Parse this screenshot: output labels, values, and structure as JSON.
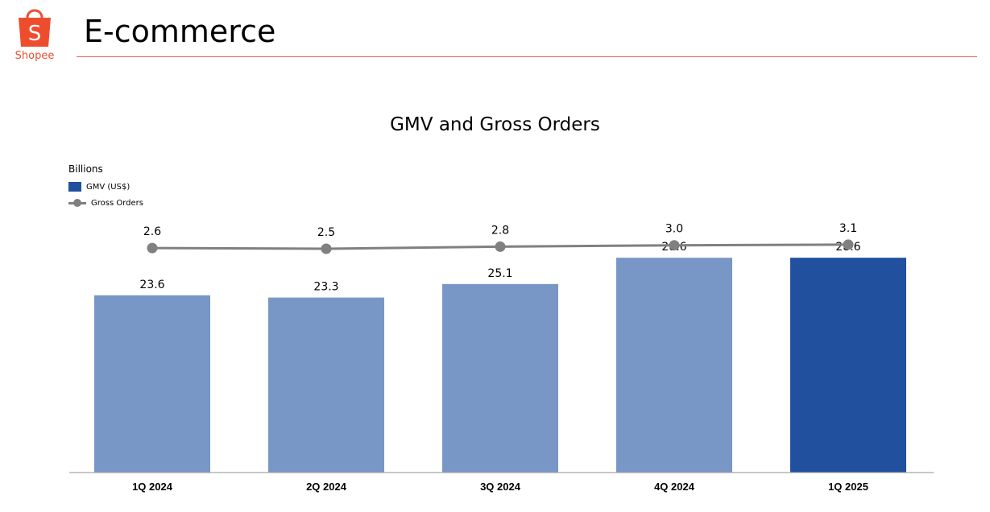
{
  "logo": {
    "text": "Shopee",
    "glyph": "S"
  },
  "header": {
    "title": "E-commerce"
  },
  "colors": {
    "brand": "#ee4d2d",
    "rule": "#e8645a",
    "bar_light": "#7896c6",
    "bar_dark": "#20509e",
    "line": "#808080"
  },
  "chart_data": {
    "type": "bar",
    "title": "GMV and Gross Orders",
    "units": "Billions",
    "categories": [
      "1Q 2024",
      "2Q 2024",
      "3Q 2024",
      "4Q 2024",
      "1Q 2025"
    ],
    "series": [
      {
        "name": "GMV (US$)",
        "type": "bar",
        "values": [
          23.6,
          23.3,
          25.1,
          28.6,
          28.6
        ],
        "labels": [
          "23.6",
          "23.3",
          "25.1",
          "28.6",
          "28.6"
        ]
      },
      {
        "name": "Gross Orders",
        "type": "line",
        "values": [
          2.6,
          2.5,
          2.8,
          3.0,
          3.1
        ],
        "labels": [
          "2.6",
          "2.5",
          "2.8",
          "3.0",
          "3.1"
        ]
      }
    ],
    "highlight_index": 4,
    "legend_position": "top-left",
    "grid": false
  }
}
